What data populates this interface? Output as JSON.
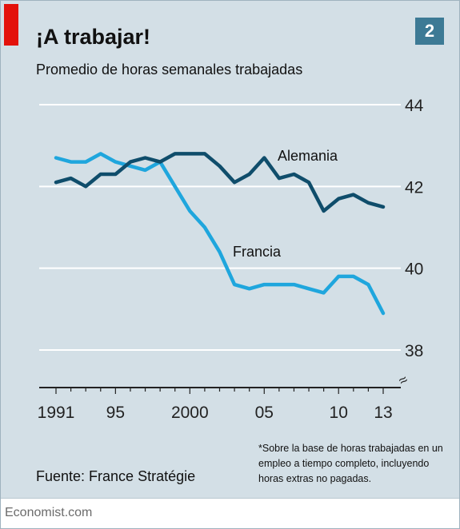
{
  "header": {
    "title": "¡A trabajar!",
    "subtitle": "Promedio de horas semanales trabajadas",
    "badge": "2"
  },
  "chart_data": {
    "type": "line",
    "title": "¡A trabajar!",
    "subtitle": "Promedio de horas semanales trabajadas",
    "x_range": [
      1991,
      2013
    ],
    "ylim": [
      38,
      44
    ],
    "y_ticks": [
      38,
      40,
      42,
      44
    ],
    "y_tick_labels": [
      "38",
      "40",
      "42",
      "44"
    ],
    "x_ticks": [
      1991,
      1995,
      2000,
      2005,
      2010,
      2013
    ],
    "x_tick_labels": [
      "1991",
      "95",
      "2000",
      "05",
      "10",
      "13"
    ],
    "y_axis_position": "right",
    "axis_break_symbol": "≈",
    "grid": true,
    "colors": {
      "Alemania": "#0f4d6b",
      "Francia": "#1fa6dd",
      "background": "#d3dfe6",
      "gridline": "#ffffff"
    },
    "series": [
      {
        "name": "Alemania",
        "x": [
          1991,
          1992,
          1993,
          1994,
          1995,
          1996,
          1997,
          1998,
          1999,
          2000,
          2001,
          2002,
          2003,
          2004,
          2005,
          2006,
          2007,
          2008,
          2009,
          2010,
          2011,
          2012,
          2013
        ],
        "values": [
          42.1,
          42.2,
          42.0,
          42.3,
          42.3,
          42.6,
          42.7,
          42.6,
          42.8,
          42.8,
          42.8,
          42.5,
          42.1,
          42.3,
          42.7,
          42.2,
          42.3,
          42.1,
          41.4,
          41.7,
          41.8,
          41.6,
          41.5
        ]
      },
      {
        "name": "Francia",
        "x": [
          1991,
          1992,
          1993,
          1994,
          1995,
          1996,
          1997,
          1998,
          1999,
          2000,
          2001,
          2002,
          2003,
          2004,
          2005,
          2006,
          2007,
          2008,
          2009,
          2010,
          2011,
          2012,
          2013
        ],
        "values": [
          42.7,
          42.6,
          42.6,
          42.8,
          42.6,
          42.5,
          42.4,
          42.6,
          42.0,
          41.4,
          41.0,
          40.4,
          39.6,
          39.5,
          39.6,
          39.6,
          39.6,
          39.5,
          39.4,
          39.8,
          39.8,
          39.6,
          38.9
        ]
      }
    ],
    "annotations": [
      "Alemania",
      "Francia"
    ]
  },
  "source": "Fuente: France Stratégie",
  "footnote": "*Sobre la base de horas trabajadas en un empleo a tiempo completo, incluyendo horas extras no pagadas.",
  "brand": "Economist.com"
}
